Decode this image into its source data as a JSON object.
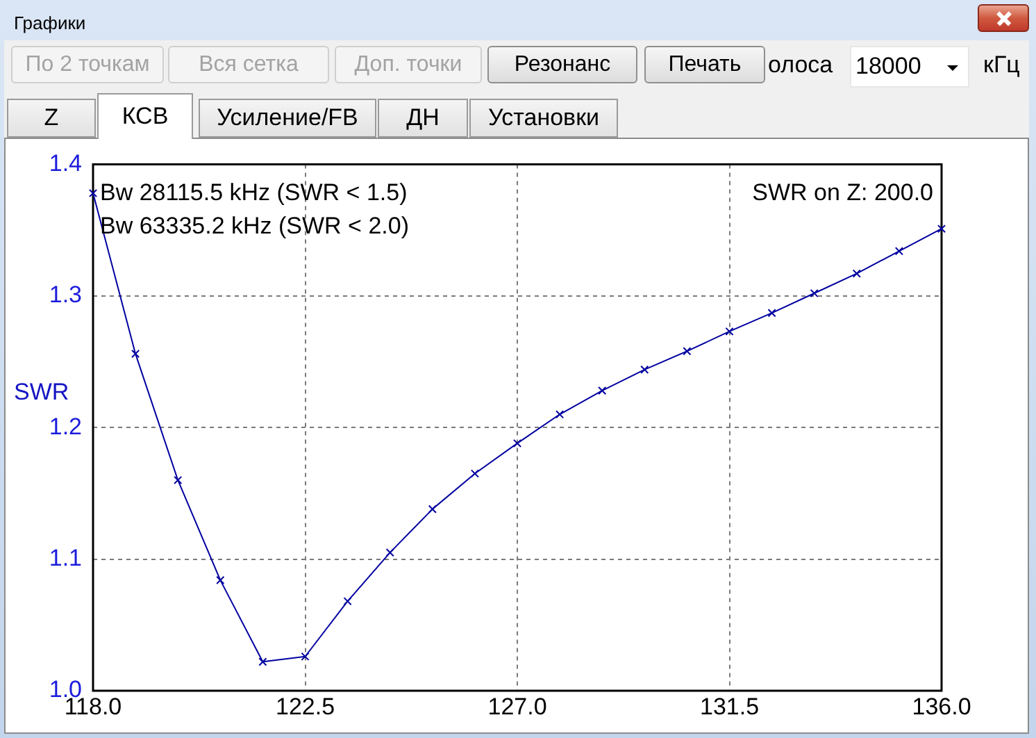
{
  "chart_data": {
    "type": "line",
    "title": "Графики",
    "ylabel": "SWR",
    "x": [
      118,
      118.9,
      119.8,
      120.7,
      121.6,
      122.5,
      123.4,
      124.3,
      125.2,
      126.1,
      127,
      127.9,
      128.8,
      129.7,
      130.6,
      131.5,
      132.4,
      133.3,
      134.2,
      135.1,
      136
    ],
    "series": [
      {
        "color": "#0000a0",
        "values": [
          1.378,
          1.256,
          1.16,
          1.084,
          1.022,
          1.026,
          1.068,
          1.105,
          1.138,
          1.165,
          1.188,
          1.21,
          1.228,
          1.244,
          1.258,
          1.273,
          1.287,
          1.302,
          1.317,
          1.334,
          1.351
        ]
      }
    ],
    "xlim": [
      118,
      136
    ],
    "xticks": [
      {
        "value": 118,
        "label": "118.0"
      },
      122.5,
      {
        "value": 127,
        "label": "127.0"
      },
      131.5,
      {
        "value": 136,
        "label": "136.0"
      }
    ],
    "ylim": [
      1,
      1.4
    ],
    "yticks": [
      {
        "value": 1,
        "label": "1.0"
      },
      1.1,
      1.2,
      1.3,
      1.4
    ],
    "grid": true,
    "marker": "cross",
    "line_style": "solid",
    "legend": false,
    "annotations": [
      "Bw 28115.5 kHz (SWR < 1.5)",
      "Bw 63335.2 kHz (SWR < 2.0)",
      "SWR on Z: 200.0",
      "По 2 точкам",
      "Вся сетка",
      "Доп. точки",
      "Резонанс",
      "Печать",
      "олоса",
      "18000",
      "кГц",
      "Z",
      "КСВ",
      "Усиление/FB",
      "ДН",
      "Установки"
    ]
  }
}
